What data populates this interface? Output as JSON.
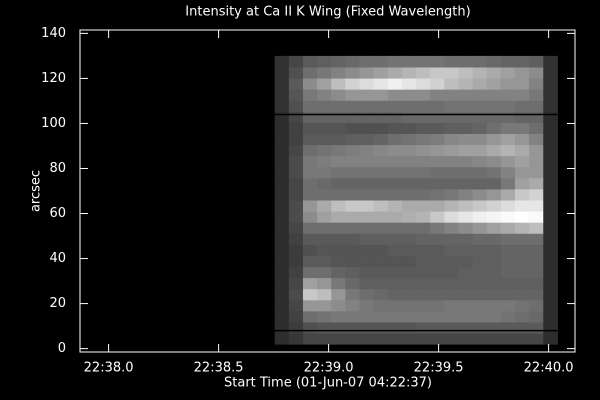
{
  "chart_data": {
    "type": "heatmap",
    "title": "Intensity at Ca II K Wing (Fixed Wavelength)",
    "xlabel": "Start Time (01-Jun-07 04:22:37)",
    "ylabel": "arcsec",
    "xlim": [
      37.87,
      40.12
    ],
    "ylim": [
      -1.5,
      141.5
    ],
    "xticks": [
      {
        "value": 38.0,
        "label": "22:38.0"
      },
      {
        "value": 38.5,
        "label": "22:38.5"
      },
      {
        "value": 39.0,
        "label": "22:39.0"
      },
      {
        "value": 39.5,
        "label": "22:39.5"
      },
      {
        "value": 40.0,
        "label": "22:40.0"
      }
    ],
    "yticks": [
      0,
      20,
      40,
      60,
      80,
      100,
      120,
      140
    ],
    "extent": [
      38.755,
      40.04,
      2,
      130
    ],
    "hlines": [
      104,
      8
    ],
    "z": [
      [
        45,
        55,
        70,
        70,
        70,
        70,
        70,
        70,
        70,
        70,
        70,
        70,
        70,
        70,
        70,
        70,
        70,
        70,
        70,
        45
      ],
      [
        45,
        60,
        80,
        85,
        85,
        85,
        85,
        85,
        85,
        85,
        90,
        90,
        90,
        90,
        90,
        90,
        90,
        90,
        90,
        45
      ],
      [
        45,
        65,
        110,
        115,
        120,
        120,
        120,
        120,
        120,
        120,
        120,
        120,
        120,
        120,
        120,
        120,
        115,
        110,
        105,
        45
      ],
      [
        45,
        70,
        150,
        150,
        140,
        130,
        120,
        115,
        115,
        115,
        115,
        115,
        120,
        120,
        120,
        120,
        120,
        115,
        110,
        45
      ],
      [
        45,
        75,
        200,
        190,
        150,
        120,
        110,
        105,
        100,
        100,
        100,
        100,
        100,
        100,
        100,
        100,
        100,
        100,
        100,
        45
      ],
      [
        45,
        70,
        160,
        150,
        120,
        105,
        95,
        95,
        95,
        95,
        95,
        95,
        95,
        95,
        95,
        95,
        95,
        95,
        95,
        45
      ],
      [
        45,
        65,
        110,
        110,
        100,
        95,
        90,
        90,
        90,
        90,
        90,
        90,
        90,
        95,
        95,
        95,
        100,
        100,
        100,
        45
      ],
      [
        45,
        60,
        90,
        90,
        85,
        85,
        85,
        85,
        85,
        85,
        90,
        90,
        90,
        90,
        95,
        95,
        100,
        100,
        100,
        45
      ],
      [
        45,
        60,
        80,
        85,
        85,
        85,
        85,
        85,
        90,
        90,
        90,
        90,
        95,
        95,
        95,
        95,
        100,
        100,
        100,
        45
      ],
      [
        45,
        65,
        90,
        90,
        90,
        90,
        95,
        95,
        95,
        95,
        100,
        100,
        100,
        100,
        105,
        105,
        110,
        110,
        110,
        45
      ],
      [
        45,
        70,
        110,
        110,
        110,
        110,
        110,
        110,
        110,
        110,
        110,
        120,
        130,
        140,
        150,
        160,
        170,
        180,
        190,
        45
      ],
      [
        45,
        75,
        140,
        160,
        170,
        170,
        170,
        170,
        170,
        175,
        180,
        200,
        220,
        230,
        240,
        245,
        250,
        255,
        250,
        45
      ],
      [
        45,
        75,
        150,
        170,
        190,
        200,
        200,
        190,
        180,
        170,
        170,
        170,
        180,
        190,
        200,
        210,
        220,
        230,
        230,
        45
      ],
      [
        45,
        70,
        110,
        110,
        110,
        110,
        110,
        110,
        110,
        110,
        110,
        115,
        120,
        130,
        140,
        150,
        170,
        200,
        210,
        45
      ],
      [
        45,
        70,
        110,
        105,
        100,
        100,
        100,
        100,
        100,
        100,
        100,
        100,
        100,
        100,
        100,
        100,
        120,
        160,
        170,
        45
      ],
      [
        45,
        75,
        120,
        120,
        115,
        115,
        115,
        115,
        115,
        115,
        115,
        110,
        110,
        110,
        110,
        115,
        130,
        150,
        150,
        45
      ],
      [
        45,
        75,
        120,
        125,
        130,
        130,
        130,
        130,
        130,
        130,
        130,
        130,
        130,
        130,
        135,
        140,
        150,
        160,
        150,
        45
      ],
      [
        45,
        70,
        110,
        115,
        120,
        125,
        130,
        135,
        140,
        140,
        145,
        150,
        155,
        160,
        160,
        170,
        180,
        170,
        150,
        45
      ],
      [
        45,
        65,
        90,
        90,
        90,
        95,
        95,
        100,
        110,
        115,
        120,
        125,
        135,
        140,
        140,
        150,
        160,
        150,
        130,
        45
      ],
      [
        45,
        65,
        85,
        85,
        85,
        80,
        80,
        80,
        85,
        85,
        90,
        90,
        95,
        95,
        100,
        110,
        120,
        120,
        110,
        45
      ],
      [
        45,
        70,
        100,
        100,
        100,
        100,
        100,
        100,
        100,
        105,
        105,
        105,
        105,
        105,
        105,
        105,
        105,
        100,
        100,
        45
      ],
      [
        50,
        80,
        110,
        110,
        110,
        110,
        110,
        110,
        110,
        110,
        110,
        110,
        115,
        115,
        115,
        115,
        115,
        110,
        110,
        50
      ],
      [
        50,
        85,
        120,
        130,
        140,
        150,
        150,
        150,
        140,
        140,
        140,
        130,
        130,
        130,
        130,
        130,
        130,
        130,
        120,
        50
      ],
      [
        50,
        90,
        140,
        160,
        190,
        210,
        220,
        230,
        240,
        230,
        220,
        210,
        190,
        180,
        170,
        160,
        150,
        150,
        130,
        50
      ],
      [
        50,
        80,
        110,
        120,
        130,
        140,
        150,
        160,
        170,
        180,
        190,
        200,
        200,
        190,
        180,
        170,
        160,
        150,
        140,
        50
      ],
      [
        50,
        70,
        90,
        95,
        100,
        105,
        110,
        110,
        115,
        115,
        115,
        115,
        110,
        110,
        110,
        105,
        100,
        100,
        95,
        50
      ]
    ]
  }
}
